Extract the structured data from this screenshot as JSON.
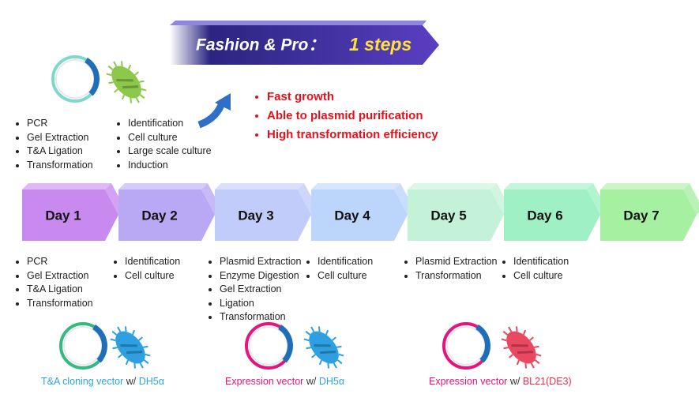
{
  "banner": {
    "title": "Fashion & Pro：",
    "highlight": "1 steps"
  },
  "top_lists": [
    [
      "PCR",
      "Gel Extraction",
      "T&A Ligation",
      "Transformation"
    ],
    [
      "Identification",
      "Cell culture",
      "Large scale culture",
      "Induction"
    ]
  ],
  "benefits": [
    "Fast growth",
    "Able to plasmid purification",
    "High transformation efficiency"
  ],
  "days": [
    {
      "label": "Day 1",
      "color": "#c98af0",
      "items": [
        "PCR",
        "Gel Extraction",
        "T&A Ligation",
        "Transformation"
      ]
    },
    {
      "label": "Day 2",
      "color": "#b9a8f4",
      "items": [
        "Identification",
        "Cell culture"
      ]
    },
    {
      "label": "Day 3",
      "color": "#c2ccfa",
      "items": [
        "Plasmid Extraction",
        "Enzyme Digestion",
        "Gel Extraction",
        "Ligation",
        "Transformation"
      ]
    },
    {
      "label": "Day 4",
      "color": "#bcd6fb",
      "items": [
        "Identification",
        "Cell culture"
      ]
    },
    {
      "label": "Day 5",
      "color": "#c4f2d8",
      "items": [
        "Plasmid Extraction",
        "Transformation"
      ]
    },
    {
      "label": "Day 6",
      "color": "#9ff0c4",
      "items": [
        "Identification",
        "Cell  culture"
      ]
    },
    {
      "label": "Day 7",
      "color": "#a6f0a2",
      "items": []
    }
  ],
  "groups": [
    {
      "vector": "T&A cloning vector",
      "with": "w/",
      "host": "DH5α"
    },
    {
      "vector": "Expression vector",
      "with": "w/",
      "host": "DH5α"
    },
    {
      "vector": "Expression vector",
      "with": "w/",
      "host": "BL21(DE3)"
    }
  ]
}
